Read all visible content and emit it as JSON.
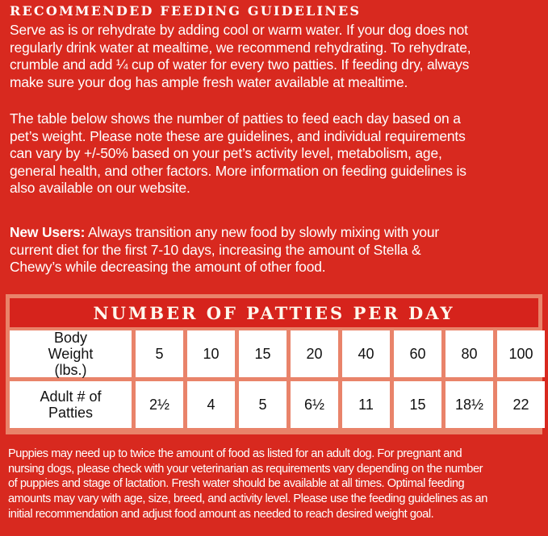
{
  "heading": "RECOMMENDED FEEDING GUIDELINES",
  "paragraph1": [
    "Serve as is or rehydrate by adding cool or warm water.  If your dog does not",
    "regularly drink water at mealtime, we recommend rehydrating.  To rehydrate,",
    "crumble and add ¼ cup of water for every two patties.  If feeding dry, always",
    "make sure your dog has ample fresh water available at mealtime."
  ],
  "paragraph2": [
    "The table below shows the number of patties to feed each day based on a",
    "pet’s weight.  Please note these are guidelines, and individual requirements",
    "can vary by +/-50% based on your pet’s activity level, metabolism, age,",
    "general health, and other factors.  More information on feeding guidelines is",
    "also available on our website."
  ],
  "paragraph3": {
    "label": "New Users:",
    "lines": [
      " Always transition any new food by slowly mixing with your",
      "current diet for the first 7-10 days, increasing the amount of Stella &",
      "Chewy’s while decreasing the amount of other food."
    ]
  },
  "table": {
    "title": "NUMBER OF PATTIES PER DAY",
    "rows": [
      {
        "header": "Body Weight (lbs.)",
        "values": [
          "5",
          "10",
          "15",
          "20",
          "40",
          "60",
          "80",
          "100"
        ]
      },
      {
        "header": "Adult # of Patties",
        "values": [
          "2½",
          "4",
          "5",
          "6½",
          "11",
          "15",
          "18½",
          "22"
        ]
      }
    ]
  },
  "footnote": [
    "Puppies may need up to twice the amount of food as listed for an adult dog. For pregnant and",
    "nursing dogs, please check with your veterinarian as requirements vary depending on the number",
    "of puppies and stage of lactation. Fresh water should be available at all times. Optimal feeding",
    "amounts may vary with age, size, breed, and activity level. Please use the feeding guidelines as an",
    "initial recommendation and adjust food amount as needed to reach desired weight goal."
  ],
  "colors": {
    "background": "#d8291f",
    "banner": "#d6231c",
    "table_border": "#e9836a"
  }
}
